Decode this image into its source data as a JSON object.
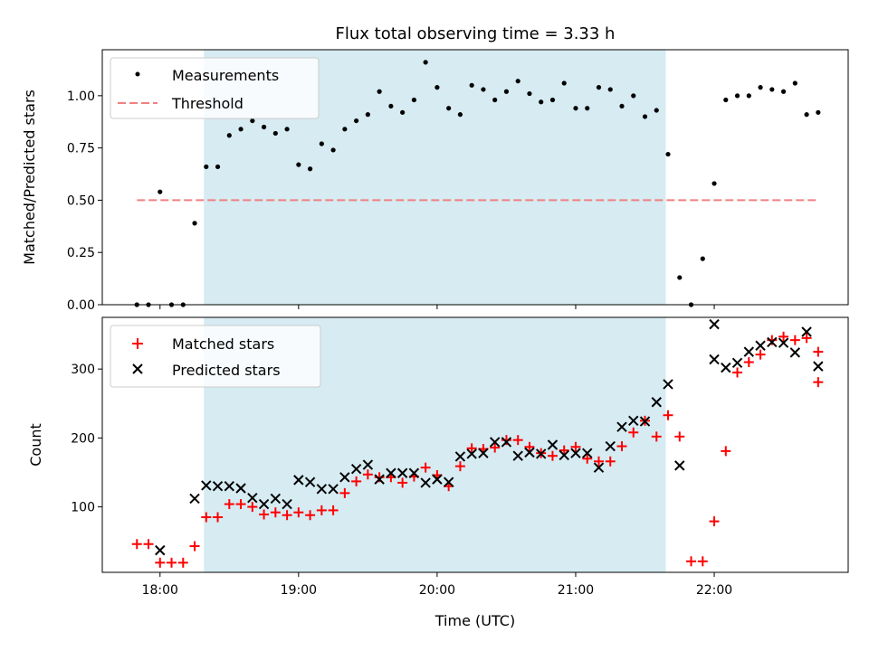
{
  "chart_data": [
    {
      "type": "scatter",
      "title": "Flux total observing time = 3.33 h",
      "xlabel": "",
      "ylabel": "Matched/Predicted stars",
      "ylim": [
        0,
        1.22
      ],
      "yticks": [
        "0.00",
        "0.25",
        "0.50",
        "0.75",
        "1.00"
      ],
      "ytick_values": [
        0,
        0.25,
        0.5,
        0.75,
        1.0
      ],
      "grid": false,
      "legend_position": "upper-left",
      "shaded_interval": [
        "18:19",
        "21:39"
      ],
      "shade_color": "#add8e6",
      "threshold": {
        "name": "Threshold",
        "value": 0.5,
        "x_range": [
          "17:50",
          "22:45"
        ],
        "color": "#f08080"
      },
      "series": [
        {
          "name": "Measurements",
          "marker": "dot",
          "color": "#000000",
          "points": [
            [
              "17:50",
              0.0
            ],
            [
              "17:55",
              0.0
            ],
            [
              "18:00",
              0.54
            ],
            [
              "18:05",
              0.0
            ],
            [
              "18:10",
              0.0
            ],
            [
              "18:15",
              0.39
            ],
            [
              "18:20",
              0.66
            ],
            [
              "18:25",
              0.66
            ],
            [
              "18:30",
              0.81
            ],
            [
              "18:35",
              0.84
            ],
            [
              "18:40",
              0.88
            ],
            [
              "18:45",
              0.85
            ],
            [
              "18:50",
              0.82
            ],
            [
              "18:55",
              0.84
            ],
            [
              "19:00",
              0.67
            ],
            [
              "19:05",
              0.65
            ],
            [
              "19:10",
              0.77
            ],
            [
              "19:15",
              0.74
            ],
            [
              "19:20",
              0.84
            ],
            [
              "19:25",
              0.88
            ],
            [
              "19:30",
              0.91
            ],
            [
              "19:35",
              1.02
            ],
            [
              "19:40",
              0.95
            ],
            [
              "19:45",
              0.92
            ],
            [
              "19:50",
              0.98
            ],
            [
              "19:55",
              1.16
            ],
            [
              "20:00",
              1.04
            ],
            [
              "20:05",
              0.94
            ],
            [
              "20:10",
              0.91
            ],
            [
              "20:15",
              1.05
            ],
            [
              "20:20",
              1.03
            ],
            [
              "20:25",
              0.98
            ],
            [
              "20:30",
              1.02
            ],
            [
              "20:35",
              1.07
            ],
            [
              "20:40",
              1.01
            ],
            [
              "20:45",
              0.97
            ],
            [
              "20:50",
              0.98
            ],
            [
              "20:55",
              1.06
            ],
            [
              "21:00",
              0.94
            ],
            [
              "21:05",
              0.94
            ],
            [
              "21:10",
              1.04
            ],
            [
              "21:15",
              1.03
            ],
            [
              "21:20",
              0.95
            ],
            [
              "21:25",
              1.0
            ],
            [
              "21:30",
              0.9
            ],
            [
              "21:35",
              0.93
            ],
            [
              "21:40",
              0.72
            ],
            [
              "21:45",
              0.13
            ],
            [
              "21:50",
              0.0
            ],
            [
              "21:55",
              0.22
            ],
            [
              "22:00",
              0.58
            ],
            [
              "22:05",
              0.98
            ],
            [
              "22:10",
              1.0
            ],
            [
              "22:15",
              1.0
            ],
            [
              "22:20",
              1.04
            ],
            [
              "22:25",
              1.03
            ],
            [
              "22:30",
              1.02
            ],
            [
              "22:35",
              1.06
            ],
            [
              "22:40",
              0.91
            ],
            [
              "22:45",
              0.92
            ]
          ]
        }
      ]
    },
    {
      "type": "scatter",
      "title": "",
      "xlabel": "Time (UTC)",
      "ylabel": "Count",
      "xlim": [
        "17:35",
        "22:58"
      ],
      "xticks": [
        "18:00",
        "19:00",
        "20:00",
        "21:00",
        "22:00"
      ],
      "ylim": [
        5,
        375
      ],
      "yticks": [
        "100",
        "200",
        "300"
      ],
      "ytick_values": [
        100,
        200,
        300
      ],
      "grid": false,
      "legend_position": "upper-left",
      "shaded_interval": [
        "18:19",
        "21:39"
      ],
      "shade_color": "#add8e6",
      "series": [
        {
          "name": "Matched stars",
          "marker": "plus",
          "color": "#ff0000",
          "points": [
            [
              "17:50",
              46
            ],
            [
              "17:55",
              46
            ],
            [
              "18:00",
              19
            ],
            [
              "18:05",
              19
            ],
            [
              "18:10",
              19
            ],
            [
              "18:15",
              43
            ],
            [
              "18:20",
              85
            ],
            [
              "18:25",
              85
            ],
            [
              "18:30",
              104
            ],
            [
              "18:35",
              104
            ],
            [
              "18:40",
              100
            ],
            [
              "18:45",
              89
            ],
            [
              "18:50",
              92
            ],
            [
              "18:55",
              88
            ],
            [
              "19:00",
              92
            ],
            [
              "19:05",
              88
            ],
            [
              "19:10",
              95
            ],
            [
              "19:15",
              95
            ],
            [
              "19:20",
              120
            ],
            [
              "19:25",
              137
            ],
            [
              "19:30",
              147
            ],
            [
              "19:35",
              143
            ],
            [
              "19:40",
              143
            ],
            [
              "19:45",
              135
            ],
            [
              "19:50",
              144
            ],
            [
              "19:55",
              157
            ],
            [
              "20:00",
              146
            ],
            [
              "20:05",
              130
            ],
            [
              "20:10",
              159
            ],
            [
              "20:15",
              185
            ],
            [
              "20:20",
              184
            ],
            [
              "20:25",
              186
            ],
            [
              "20:30",
              197
            ],
            [
              "20:35",
              197
            ],
            [
              "20:40",
              187
            ],
            [
              "20:45",
              178
            ],
            [
              "20:50",
              174
            ],
            [
              "20:55",
              182
            ],
            [
              "21:00",
              187
            ],
            [
              "21:05",
              170
            ],
            [
              "21:10",
              166
            ],
            [
              "21:15",
              166
            ],
            [
              "21:20",
              188
            ],
            [
              "21:25",
              208
            ],
            [
              "21:30",
              225
            ],
            [
              "21:35",
              202
            ],
            [
              "21:40",
              233
            ],
            [
              "21:45",
              202
            ],
            [
              "21:50",
              21
            ],
            [
              "21:55",
              21
            ],
            [
              "22:00",
              79
            ],
            [
              "22:05",
              181
            ],
            [
              "22:10",
              295
            ],
            [
              "22:15",
              310
            ],
            [
              "22:20",
              321
            ],
            [
              "22:25",
              342
            ],
            [
              "22:30",
              347
            ],
            [
              "22:35",
              342
            ],
            [
              "22:40",
              345
            ],
            [
              "22:45",
              325
            ],
            [
              "22:45",
              281
            ]
          ]
        },
        {
          "name": "Predicted stars",
          "marker": "x",
          "color": "#000000",
          "points": [
            [
              "18:00",
              37
            ],
            [
              "18:15",
              112
            ],
            [
              "18:20",
              131
            ],
            [
              "18:25",
              130
            ],
            [
              "18:30",
              130
            ],
            [
              "18:35",
              127
            ],
            [
              "18:40",
              113
            ],
            [
              "18:45",
              104
            ],
            [
              "18:50",
              112
            ],
            [
              "18:55",
              104
            ],
            [
              "19:00",
              139
            ],
            [
              "19:05",
              136
            ],
            [
              "19:10",
              126
            ],
            [
              "19:15",
              126
            ],
            [
              "19:20",
              143
            ],
            [
              "19:25",
              155
            ],
            [
              "19:30",
              161
            ],
            [
              "19:35",
              140
            ],
            [
              "19:40",
              149
            ],
            [
              "19:45",
              149
            ],
            [
              "19:50",
              149
            ],
            [
              "19:55",
              135
            ],
            [
              "20:00",
              140
            ],
            [
              "20:05",
              136
            ],
            [
              "20:10",
              173
            ],
            [
              "20:15",
              177
            ],
            [
              "20:20",
              178
            ],
            [
              "20:25",
              194
            ],
            [
              "20:30",
              194
            ],
            [
              "20:35",
              174
            ],
            [
              "20:40",
              179
            ],
            [
              "20:45",
              177
            ],
            [
              "20:50",
              190
            ],
            [
              "20:55",
              175
            ],
            [
              "21:00",
              178
            ],
            [
              "21:05",
              178
            ],
            [
              "21:10",
              157
            ],
            [
              "21:15",
              188
            ],
            [
              "21:20",
              216
            ],
            [
              "21:25",
              225
            ],
            [
              "21:30",
              224
            ],
            [
              "21:35",
              252
            ],
            [
              "21:40",
              278
            ],
            [
              "21:45",
              160
            ],
            [
              "22:00",
              365
            ],
            [
              "22:00",
              314
            ],
            [
              "22:05",
              302
            ],
            [
              "22:10",
              309
            ],
            [
              "22:15",
              325
            ],
            [
              "22:20",
              334
            ],
            [
              "22:25",
              339
            ],
            [
              "22:30",
              338
            ],
            [
              "22:35",
              324
            ],
            [
              "22:40",
              354
            ],
            [
              "22:45",
              304
            ]
          ]
        }
      ]
    }
  ]
}
